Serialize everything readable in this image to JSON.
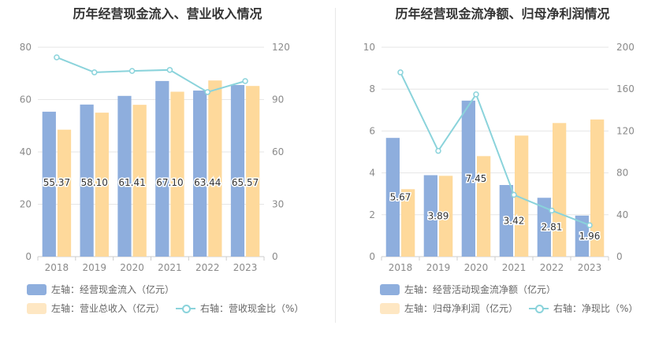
{
  "charts": [
    {
      "title": "历年经营现金流入、营业收入情况",
      "legend": [
        {
          "label": "左轴：经营现金流入（亿元）",
          "color": "#8eaedd",
          "kind": "bar"
        },
        {
          "label": "左轴：营业总收入（亿元）",
          "color": "#fed99b",
          "kind": "bar"
        },
        {
          "label": "右轴：营收现金比（%）",
          "color": "#8ad3db",
          "kind": "line"
        }
      ]
    },
    {
      "title": "历年经营现金流净额、归母净利润情况",
      "legend": [
        {
          "label": "左轴：经营活动现金流净额（亿元）",
          "color": "#8eaedd",
          "kind": "bar"
        },
        {
          "label": "左轴：归母净利润（亿元）",
          "color": "#fed99b",
          "kind": "bar"
        },
        {
          "label": "右轴：净现比（%）",
          "color": "#8ad3db",
          "kind": "line"
        }
      ]
    }
  ],
  "chart_data": [
    {
      "type": "bar",
      "title": "历年经营现金流入、营业收入情况",
      "categories": [
        "2018",
        "2019",
        "2020",
        "2021",
        "2022",
        "2023"
      ],
      "ylim_left": [
        0,
        80
      ],
      "yticks_left": [
        0,
        20,
        40,
        60,
        80
      ],
      "ylim_right": [
        0,
        120
      ],
      "yticks_right": [
        0,
        30,
        60,
        90,
        120
      ],
      "grid": true,
      "legend_position": "bottom-left",
      "series": [
        {
          "name": "左轴：经营现金流入（亿元）",
          "axis": "left",
          "type": "bar",
          "color": "#8eaedd",
          "values": [
            55.37,
            58.1,
            61.41,
            67.1,
            63.44,
            65.57
          ],
          "labels": [
            "55.37",
            "58.10",
            "61.41",
            "67.10",
            "63.44",
            "65.57"
          ]
        },
        {
          "name": "左轴：营业总收入（亿元）",
          "axis": "left",
          "type": "bar",
          "color": "#fed99b",
          "values": [
            48.5,
            55.0,
            58.0,
            63.0,
            67.3,
            65.2
          ]
        },
        {
          "name": "右轴：营收现金比（%）",
          "axis": "right",
          "type": "line",
          "color": "#8ad3db",
          "values": [
            114.2,
            105.6,
            106.4,
            107.0,
            94.3,
            100.6
          ]
        }
      ]
    },
    {
      "type": "bar",
      "title": "历年经营现金流净额、归母净利润情况",
      "categories": [
        "2018",
        "2019",
        "2020",
        "2021",
        "2022",
        "2023"
      ],
      "ylim_left": [
        0,
        10
      ],
      "yticks_left": [
        0,
        2,
        4,
        6,
        8,
        10
      ],
      "ylim_right": [
        0,
        200
      ],
      "yticks_right": [
        0,
        40,
        80,
        120,
        160,
        200
      ],
      "grid": true,
      "legend_position": "bottom-left",
      "series": [
        {
          "name": "左轴：经营活动现金流净额（亿元）",
          "axis": "left",
          "type": "bar",
          "color": "#8eaedd",
          "values": [
            5.67,
            3.89,
            7.45,
            3.42,
            2.81,
            1.96
          ],
          "labels": [
            "5.67",
            "3.89",
            "7.45",
            "3.42",
            "2.81",
            "1.96"
          ]
        },
        {
          "name": "左轴：归母净利润（亿元）",
          "axis": "left",
          "type": "bar",
          "color": "#fed99b",
          "values": [
            3.22,
            3.86,
            4.8,
            5.78,
            6.38,
            6.55
          ]
        },
        {
          "name": "右轴：净现比（%）",
          "axis": "right",
          "type": "line",
          "color": "#8ad3db",
          "values": [
            176,
            101,
            155,
            59,
            44,
            30
          ]
        }
      ]
    }
  ]
}
